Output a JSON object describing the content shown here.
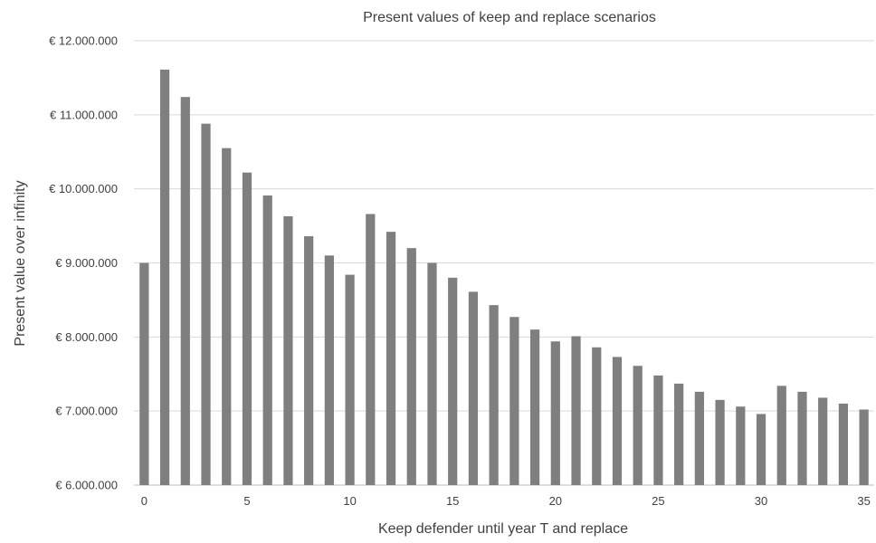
{
  "chart_data": {
    "type": "bar",
    "title": "Present values of keep and replace scenarios",
    "xlabel": "Keep defender until year T and replace",
    "ylabel": "Present value over infinity",
    "ylim": [
      6000000,
      12000000
    ],
    "y_ticks": [
      6000000,
      7000000,
      8000000,
      9000000,
      10000000,
      11000000,
      12000000
    ],
    "y_tick_labels": [
      "€ 6.000.000",
      "€ 7.000.000",
      "€ 8.000.000",
      "€ 9.000.000",
      "€ 10.000.000",
      "€ 11.000.000",
      "€ 12.000.000"
    ],
    "x_tick_labels": [
      "0",
      "5",
      "10",
      "15",
      "20",
      "25",
      "30",
      "35"
    ],
    "x_tick_values": [
      0,
      5,
      10,
      15,
      20,
      25,
      30,
      35
    ],
    "grid": true,
    "bar_color": "#7f7f7f",
    "categories": [
      0,
      1,
      2,
      3,
      4,
      5,
      6,
      7,
      8,
      9,
      10,
      11,
      12,
      13,
      14,
      15,
      16,
      17,
      18,
      19,
      20,
      21,
      22,
      23,
      24,
      25,
      26,
      27,
      28,
      29,
      30,
      31,
      32,
      33,
      34,
      35
    ],
    "values": [
      9000000,
      11610000,
      11240000,
      10880000,
      10550000,
      10220000,
      9910000,
      9630000,
      9360000,
      9100000,
      8840000,
      9660000,
      9420000,
      9200000,
      9000000,
      8800000,
      8610000,
      8430000,
      8270000,
      8100000,
      7940000,
      8010000,
      7860000,
      7730000,
      7610000,
      7480000,
      7370000,
      7260000,
      7150000,
      7060000,
      6960000,
      7340000,
      7260000,
      7180000,
      7100000,
      7020000
    ]
  }
}
